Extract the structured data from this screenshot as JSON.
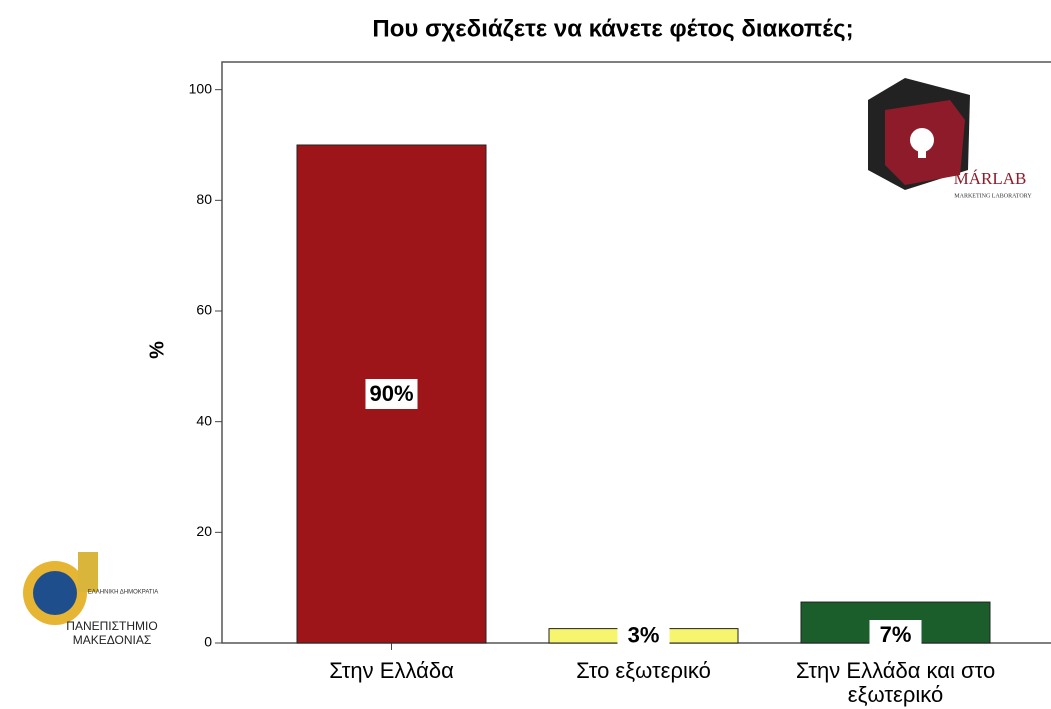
{
  "chart_data": {
    "type": "bar",
    "title": "Που σχεδιάζετε να κάνετε φέτος διακοπές;",
    "ylabel": "%",
    "categories": [
      "Στην Ελλάδα",
      "Στο εξωτερικό",
      "Στην Ελλάδα και στο εξωτερικό"
    ],
    "values": [
      90,
      2.6,
      7.4
    ],
    "value_labels": [
      "90%",
      "3%",
      "7%"
    ],
    "colors": [
      "#9e1519",
      "#f7f56e",
      "#1b5e2c"
    ],
    "ylim": [
      0,
      105
    ],
    "yticks": [
      0,
      20,
      40,
      60,
      80,
      100
    ],
    "grid": false
  },
  "logos": {
    "marlab": {
      "name": "MÁRLAB",
      "subtitle": "MARKETING LABORATORY"
    },
    "university": {
      "line1": "ΠΑΝΕΠΙΣΤΗΜΙΟ",
      "line2": "ΜΑΚΕΔΟΝΙΑΣ",
      "badge": "ΕΛΛΗΝΙΚΗ ΔΗΜΟΚΡΑΤΙΑ"
    }
  }
}
